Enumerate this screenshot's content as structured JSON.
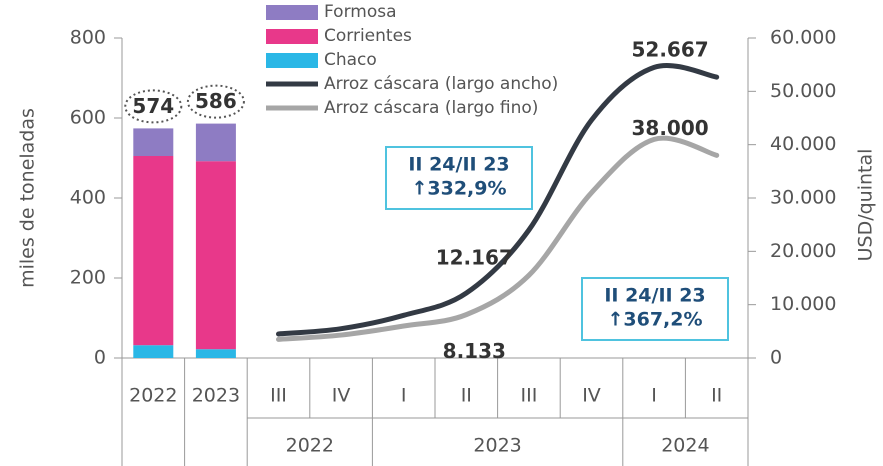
{
  "chart_data": {
    "type": "combo",
    "categories": [
      "2022",
      "2023",
      "III",
      "IV",
      "I",
      "II",
      "III",
      "IV",
      "I",
      "II"
    ],
    "category_groups": [
      null,
      null,
      "2022",
      "2022",
      "2023",
      "2023",
      "2023",
      "2023",
      "2024",
      "2024"
    ],
    "series": [
      {
        "name": "Formosa",
        "color": "#8e7cc3",
        "type": "bar",
        "values": [
          69,
          94,
          null,
          null,
          null,
          null,
          null,
          null,
          null,
          null
        ]
      },
      {
        "name": "Corrientes",
        "color": "#e8388a",
        "type": "bar",
        "values": [
          473,
          470,
          null,
          null,
          null,
          null,
          null,
          null,
          null,
          null
        ]
      },
      {
        "name": "Chaco",
        "color": "#2ab7e6",
        "type": "bar",
        "values": [
          32,
          22,
          null,
          null,
          null,
          null,
          null,
          null,
          null,
          null
        ]
      },
      {
        "name": "Arroz cáscara (largo ancho)",
        "color": "#333a44",
        "type": "line",
        "axis": "y2",
        "values": [
          null,
          null,
          4500,
          5500,
          8000,
          12167,
          24000,
          44600,
          54500,
          52667
        ],
        "value_labels": [
          null,
          null,
          null,
          null,
          null,
          "12.167",
          null,
          null,
          null,
          "52.667"
        ]
      },
      {
        "name": "Arroz cáscara (largo fino)",
        "color": "#a6a6a6",
        "type": "line",
        "axis": "y2",
        "values": [
          null,
          null,
          3500,
          4300,
          6000,
          8133,
          15500,
          31000,
          41000,
          38000
        ],
        "value_labels": [
          null,
          null,
          null,
          null,
          null,
          "8.133",
          null,
          null,
          null,
          "38.000"
        ]
      }
    ],
    "totals": [
      574,
      586
    ],
    "ylabel": "miles de toneladas",
    "y2label": "USD/quintal",
    "ylim": [
      0,
      800
    ],
    "yticks": [
      0,
      200,
      400,
      600,
      800
    ],
    "y2lim": [
      0,
      60000
    ],
    "y2ticks": [
      0,
      {
        "value": 10000,
        "label": "10.000"
      },
      {
        "value": 20000,
        "label": "20.000"
      },
      {
        "value": 30000,
        "label": "30.000"
      },
      {
        "value": 40000,
        "label": "40.000"
      },
      {
        "value": 50000,
        "label": "50.000"
      },
      {
        "value": 60000,
        "label": "60.000"
      }
    ],
    "annotations": [
      {
        "lines": [
          "II 24/II 23",
          "↑332,9%"
        ]
      },
      {
        "lines": [
          "II 24/II 23",
          "↑367,2%"
        ]
      }
    ]
  }
}
